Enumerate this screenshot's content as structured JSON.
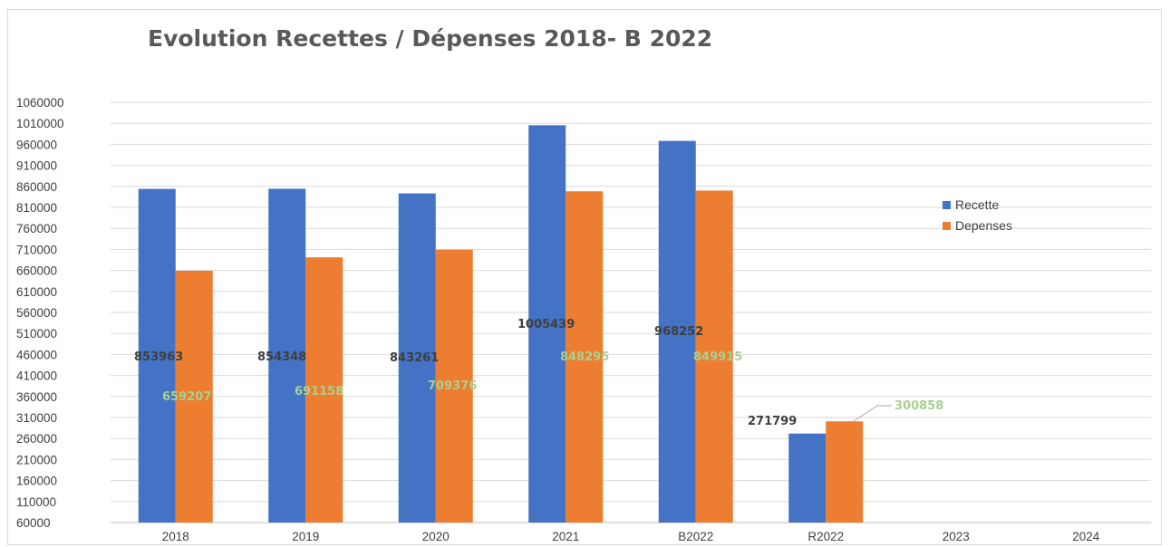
{
  "chart_data": {
    "type": "bar",
    "title": "Evolution Recettes / Dépenses 2018- B 2022",
    "categories": [
      "2018",
      "2019",
      "2020",
      "2021",
      "B2022",
      "R2022",
      "2023",
      "2024"
    ],
    "series": [
      {
        "name": "Recette",
        "color": "#4472c4",
        "values": [
          853963,
          854348,
          843261,
          1005439,
          968252,
          271799,
          null,
          null
        ]
      },
      {
        "name": "Depenses",
        "color": "#ed7d31",
        "values": [
          659207,
          691158,
          709376,
          848295,
          849915,
          300858,
          null,
          null
        ]
      }
    ],
    "data_labels": {
      "Recette": [
        "853963",
        "854348",
        "843261",
        "1005439",
        "968252",
        "271799"
      ],
      "Depenses": [
        "659207",
        "691158",
        "709376",
        "848295",
        "849915",
        "300858"
      ]
    },
    "ylim": [
      60000,
      1060000
    ],
    "yticks": [
      60000,
      110000,
      160000,
      210000,
      260000,
      310000,
      360000,
      410000,
      460000,
      510000,
      560000,
      610000,
      660000,
      710000,
      760000,
      810000,
      860000,
      910000,
      960000,
      1010000,
      1060000
    ],
    "grid": true,
    "legend_position": "right"
  }
}
